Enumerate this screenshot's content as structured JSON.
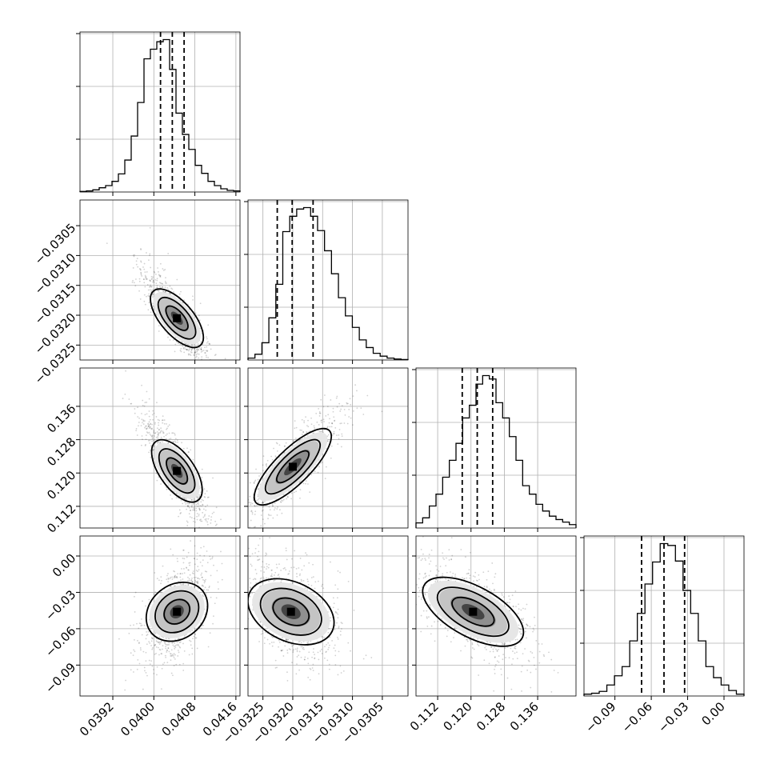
{
  "chart_data": {
    "type": "scatter",
    "kind": "corner-plot",
    "title": "",
    "parameters": [
      "",
      "",
      "",
      ""
    ],
    "quantiles": [
      0.16,
      0.5,
      0.84
    ],
    "grid": true,
    "colors": {
      "line": "#000000",
      "grid": "#b0b0b0",
      "points": "#000000"
    },
    "axes": [
      {
        "range": [
          0.03856,
          0.04168
        ],
        "ticks": [
          0.0392,
          0.04,
          0.0408,
          0.0416
        ],
        "tick_labels": [
          "0.0392",
          "0.0400",
          "0.0408",
          "0.0416"
        ],
        "median": 0.04036,
        "q16": 0.04013,
        "q84": 0.04059,
        "hist": [
          1,
          2,
          4,
          8,
          12,
          20,
          34,
          60,
          105,
          168,
          250,
          268,
          282,
          286,
          230,
          148,
          108,
          80,
          50,
          35,
          20,
          12,
          6,
          3,
          2
        ]
      },
      {
        "range": [
          -0.03275,
          -0.03007
        ],
        "ticks": [
          -0.0325,
          -0.032,
          -0.0315,
          -0.031,
          -0.0305
        ],
        "tick_labels": [
          "−0.0325",
          "−0.0320",
          "−0.0315",
          "−0.0310",
          "−0.0305"
        ],
        "median": -0.03201,
        "q16": -0.03226,
        "q84": -0.03166,
        "hist": [
          4,
          12,
          36,
          88,
          158,
          268,
          300,
          315,
          318,
          300,
          270,
          228,
          180,
          130,
          92,
          68,
          42,
          26,
          14,
          8,
          4,
          2,
          1
        ]
      },
      {
        "range": [
          0.1068,
          0.1452
        ],
        "ticks": [
          0.112,
          0.12,
          0.128,
          0.136
        ],
        "tick_labels": [
          "0.112",
          "0.120",
          "0.128",
          "0.136"
        ],
        "median": 0.1215,
        "q16": 0.1179,
        "q84": 0.1252,
        "hist": [
          6,
          12,
          26,
          40,
          60,
          80,
          100,
          130,
          145,
          170,
          180,
          176,
          148,
          130,
          108,
          80,
          50,
          40,
          28,
          20,
          14,
          10,
          7,
          4
        ]
      },
      {
        "range": [
          -0.1155,
          0.0165
        ],
        "ticks": [
          -0.09,
          -0.06,
          -0.03,
          0.0
        ],
        "tick_labels": [
          "−0.09",
          "−0.06",
          "−0.03",
          "0.00"
        ],
        "median": -0.0495,
        "q16": -0.068,
        "q84": -0.0325,
        "hist": [
          2,
          3,
          5,
          12,
          22,
          32,
          60,
          90,
          122,
          146,
          166,
          164,
          147,
          115,
          90,
          60,
          32,
          20,
          12,
          6,
          2
        ]
      }
    ],
    "pairs": [
      {
        "row": 1,
        "col": 0,
        "center": [
          0.04045,
          -0.03205
        ],
        "spread": [
          0.00027,
          0.00033
        ],
        "corr": -0.82
      },
      {
        "row": 2,
        "col": 0,
        "center": [
          0.04045,
          0.1205
        ],
        "spread": [
          0.00027,
          0.0055
        ],
        "corr": -0.85
      },
      {
        "row": 2,
        "col": 1,
        "center": [
          -0.032,
          0.1215
        ],
        "spread": [
          0.00033,
          0.0055
        ],
        "corr": 0.85
      },
      {
        "row": 3,
        "col": 0,
        "center": [
          0.04045,
          -0.046
        ],
        "spread": [
          0.00027,
          0.017
        ],
        "corr": 0.55
      },
      {
        "row": 3,
        "col": 1,
        "center": [
          -0.03203,
          -0.046
        ],
        "spread": [
          0.00033,
          0.017
        ],
        "corr": -0.45
      },
      {
        "row": 3,
        "col": 2,
        "center": [
          0.1205,
          -0.046
        ],
        "spread": [
          0.0055,
          0.017
        ],
        "corr": -0.6
      }
    ]
  }
}
